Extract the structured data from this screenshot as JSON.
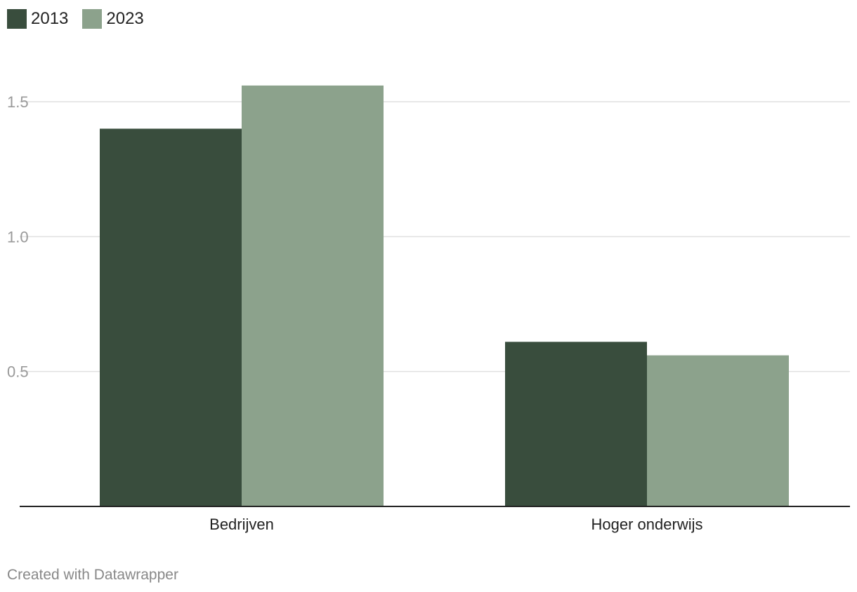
{
  "chart_data": {
    "type": "bar",
    "categories": [
      "Bedrijven",
      "Hoger onderwijs"
    ],
    "series": [
      {
        "name": "2013",
        "color": "#394d3d",
        "values": [
          1.4,
          0.61
        ]
      },
      {
        "name": "2023",
        "color": "#8ca28c",
        "values": [
          1.56,
          0.56
        ]
      }
    ],
    "yticks": [
      0.5,
      1.0,
      1.5
    ],
    "ytick_labels": [
      "0.5",
      "1.0",
      "1.5"
    ],
    "ylim": [
      0,
      1.5
    ],
    "grid": true,
    "legend_position": "top-left"
  },
  "footer": {
    "credit": "Created with Datawrapper"
  },
  "colors": {
    "grid": "#e0e0e0",
    "axis": "#222222",
    "tick_label": "#999999"
  }
}
